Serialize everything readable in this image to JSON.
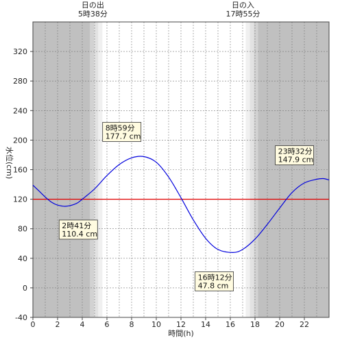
{
  "chart_data": {
    "type": "line",
    "xlabel": "時間(h)",
    "ylabel": "水位(cm)",
    "xlim": [
      0,
      24
    ],
    "ylim": [
      -40,
      360
    ],
    "x_ticks": [
      0,
      2,
      4,
      6,
      8,
      10,
      12,
      14,
      16,
      18,
      20,
      22
    ],
    "y_ticks": [
      -40,
      0,
      40,
      80,
      120,
      160,
      200,
      240,
      280,
      320
    ],
    "reference_line": {
      "value": 120,
      "color": "#e00000"
    },
    "line_color": "#0000dd",
    "sunrise": {
      "label": "日の出",
      "time_label": "5時38分",
      "hour": 5.633
    },
    "sunset": {
      "label": "日の入",
      "time_label": "17時55分",
      "hour": 17.917
    },
    "night_color": "#c0c0c0",
    "day_color": "#ffffff",
    "twilight_colors": [
      "#d2d2d2",
      "#e2e2e2",
      "#f0f0f0"
    ],
    "extremes": [
      {
        "time_label": "2時41分",
        "value_label": "110.4 cm",
        "hour": 2.683,
        "value": 110.4
      },
      {
        "time_label": "8時59分",
        "value_label": "177.7 cm",
        "hour": 8.983,
        "value": 177.7
      },
      {
        "time_label": "16時12分",
        "value_label": "47.8 cm",
        "hour": 16.2,
        "value": 47.8
      },
      {
        "time_label": "23時32分",
        "value_label": "147.9 cm",
        "hour": 23.533,
        "value": 147.9
      }
    ],
    "series": [
      {
        "x": [
          0,
          0.5,
          1,
          1.5,
          2,
          2.683,
          3.5,
          4,
          5,
          6,
          7,
          8,
          8.983,
          10,
          11,
          12,
          13,
          14,
          15,
          16.2,
          17,
          18,
          19,
          20,
          21,
          22,
          23,
          23.533,
          24
        ],
        "y": [
          139,
          131,
          123,
          116,
          112,
          110.4,
          114,
          120,
          134,
          152,
          167,
          176,
          177.7,
          170,
          150,
          122,
          92,
          67,
          52,
          47.8,
          52,
          66,
          86,
          108,
          129,
          142,
          147,
          147.9,
          146
        ]
      }
    ]
  }
}
